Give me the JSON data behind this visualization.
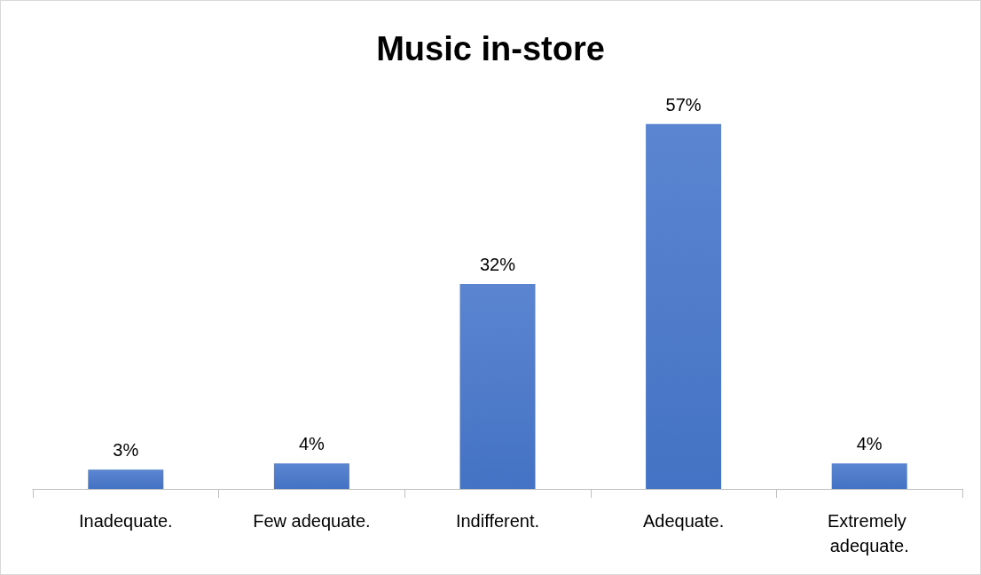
{
  "chart_data": {
    "type": "bar",
    "title": "Music in-store",
    "categories": [
      "Inadequate.",
      "Few adequate.",
      "Indifferent.",
      "Adequate.",
      "Extremely adequate."
    ],
    "values": [
      3,
      4,
      32,
      57,
      4
    ],
    "value_labels": [
      "3%",
      "4%",
      "32%",
      "57%",
      "4%"
    ],
    "color": "#4472c4"
  }
}
